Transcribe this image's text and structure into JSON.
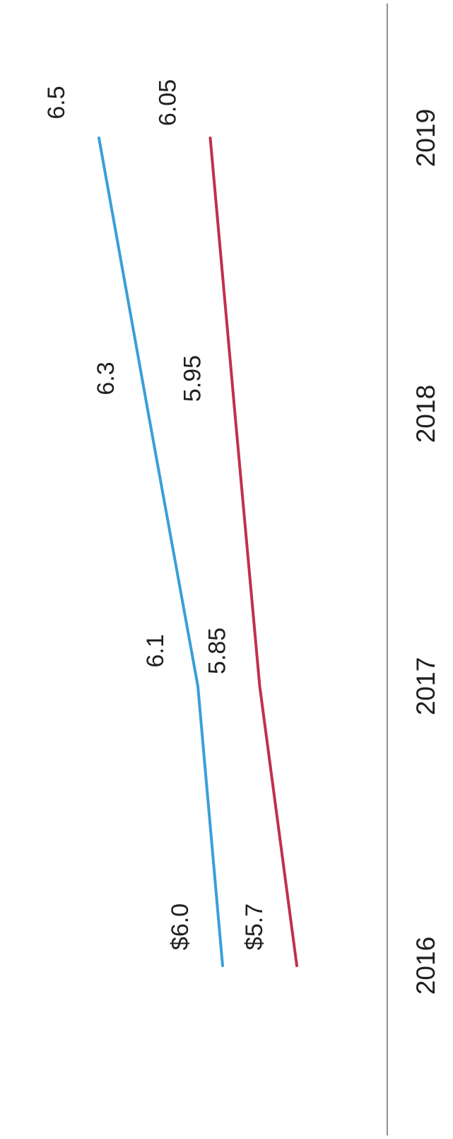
{
  "chart_data": {
    "type": "line",
    "title": "",
    "xlabel": "",
    "ylabel": "",
    "categories": [
      "2016",
      "2017",
      "2018",
      "2019"
    ],
    "ylim": [
      5.3,
      6.9
    ],
    "grid": false,
    "legend": "none",
    "series": [
      {
        "color": "#3a9fd8",
        "values": [
          6.0,
          6.1,
          6.3,
          6.5
        ],
        "labels": [
          "$6.0",
          "6.1",
          "6.3",
          "6.5"
        ]
      },
      {
        "color": "#c0304d",
        "values": [
          5.7,
          5.85,
          5.95,
          6.05
        ],
        "labels": [
          "$5.7",
          "5.85",
          "5.95",
          "6.05"
        ]
      }
    ],
    "axis_color": "#5d6f73"
  }
}
